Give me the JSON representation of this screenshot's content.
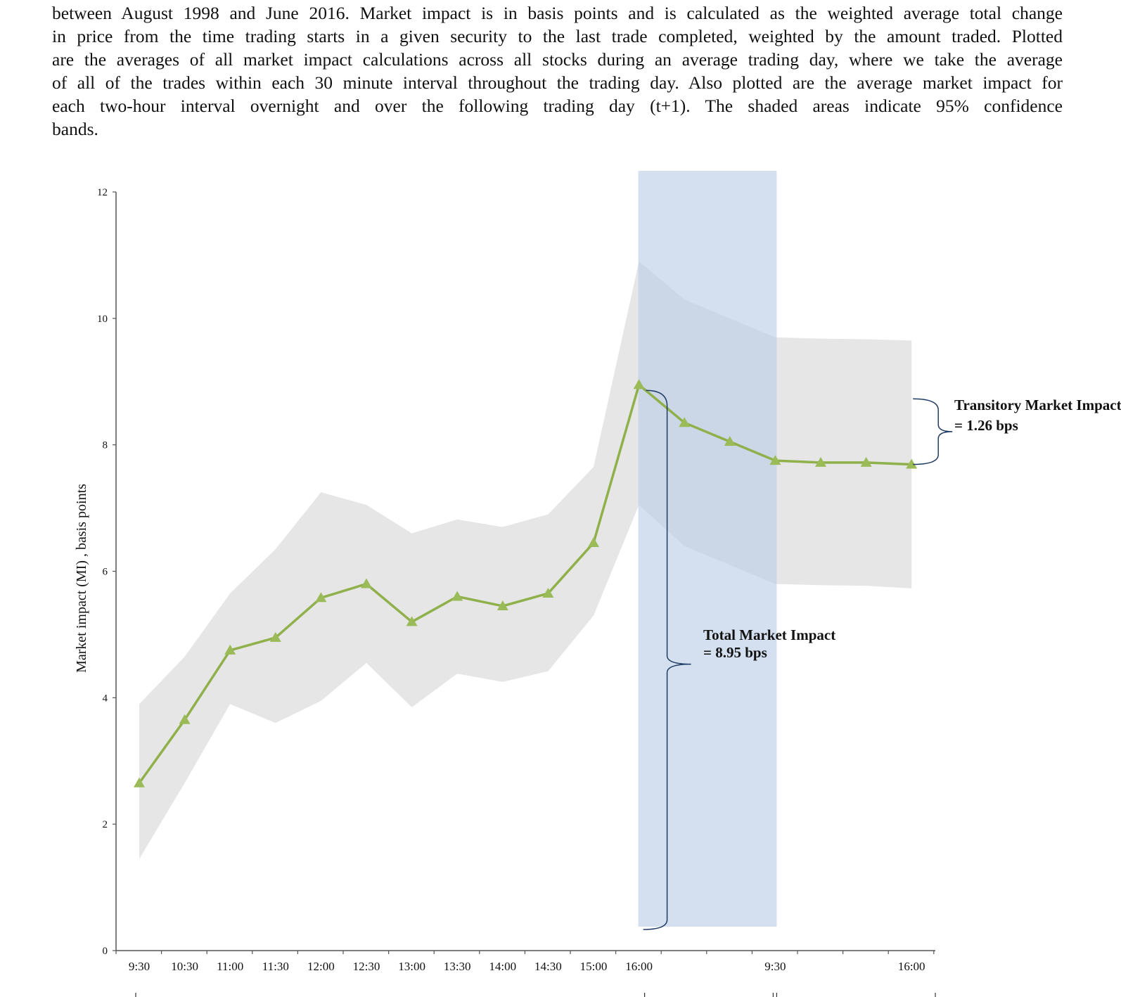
{
  "caption": {
    "lines": [
      "between August 1998 and June 2016. Market impact is in basis points and is calculated as the weighted average total change",
      "in price from the time trading starts in a given security to the last trade completed, weighted by the amount traded. Plotted",
      "are the averages of all market impact calculations across all stocks during an average trading day, where we take the average",
      "of all of the trades within each 30 minute interval throughout the trading day. Also plotted are the average market impact for",
      "each two-hour interval overnight and over the following trading day (t+1). The shaded areas indicate 95% confidence",
      "bands."
    ]
  },
  "chart_data": {
    "type": "line",
    "title": "",
    "xlabel": "",
    "ylabel": "Market impact (MI) , basis points",
    "ylim": [
      0,
      12
    ],
    "yticks": [
      0,
      2,
      4,
      6,
      8,
      10,
      12
    ],
    "x_tick_labels": [
      "9:30",
      "10:30",
      "11:00",
      "11:30",
      "12:00",
      "12:30",
      "13:00",
      "13:30",
      "14:00",
      "14:30",
      "15:00",
      "16:00",
      "",
      "",
      "9:30",
      "",
      "",
      "16:00"
    ],
    "grid": false,
    "series": [
      {
        "name": "",
        "color": "#8fb04a",
        "marker": "triangle",
        "values": [
          2.65,
          3.65,
          4.75,
          4.95,
          5.58,
          5.8,
          5.2,
          5.6,
          5.45,
          5.65,
          6.45,
          8.95,
          8.35,
          8.05,
          7.75,
          7.72,
          7.72,
          7.69
        ],
        "ci_lower": [
          1.45,
          2.65,
          3.9,
          3.6,
          3.95,
          4.55,
          3.85,
          4.38,
          4.25,
          4.42,
          5.3,
          7.05,
          6.4,
          6.1,
          5.8,
          5.78,
          5.77,
          5.73
        ],
        "ci_upper": [
          3.9,
          4.65,
          5.65,
          6.35,
          7.25,
          7.05,
          6.6,
          6.82,
          6.7,
          6.9,
          7.65,
          10.9,
          10.3,
          10.0,
          9.7,
          9.68,
          9.67,
          9.65
        ]
      }
    ],
    "highlight_band": {
      "from_index": 11,
      "to_index": 14,
      "color": "#b9cde5"
    },
    "annotations": {
      "total": {
        "line1": "Total Market Impact",
        "line2": "= 8.95 bps"
      },
      "transitory": {
        "line1": "Transitory Market Impact",
        "line2": "= 1.26 bps"
      }
    },
    "colors": {
      "ci_band": "#e6e6e6",
      "highlight": "#b9cde5",
      "line": "#8fb04a",
      "marker": "#9bbb59",
      "axis": "#555555"
    }
  }
}
